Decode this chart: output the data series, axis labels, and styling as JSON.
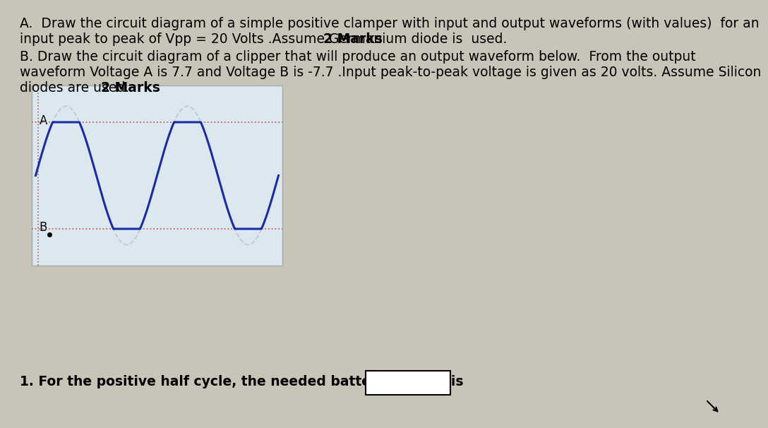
{
  "bg_color": "#c8c4b8",
  "panel_color": "#e8e4d4",
  "waveform_panel_color": "#dce8f0",
  "text_A_line1": "A.  Draw the circuit diagram of a simple positive clamper with input and output waveforms (with values)  for an",
  "text_A_line2": "input peak to peak of Vpp = 20 Volts .Assume Germanium diode is  used.  ",
  "text_A_bold": "2 Marks",
  "text_B_line1": "B. Draw the circuit diagram of a clipper that will produce an output waveform below.  From the output",
  "text_B_line2": "waveform Voltage A is 7.7 and Voltage B is -7.7 .Input peak-to-peak voltage is given as 20 volts. Assume Silicon",
  "text_B_line3": "diodes are used. ",
  "text_B_bold": "2 Marks",
  "text_Q1": "1. For the positive half cycle, the needed battery voltage is",
  "input_color": "#c0c0c0",
  "output_color": "#1a2d9e",
  "dotted_h_color": "#cc4444",
  "dotted_v_color": "#994444",
  "label_A": "A",
  "label_B": "B",
  "font_size_main": 13.5,
  "voltage_A": 7.7,
  "voltage_B": -7.7,
  "amplitude": 10.0
}
